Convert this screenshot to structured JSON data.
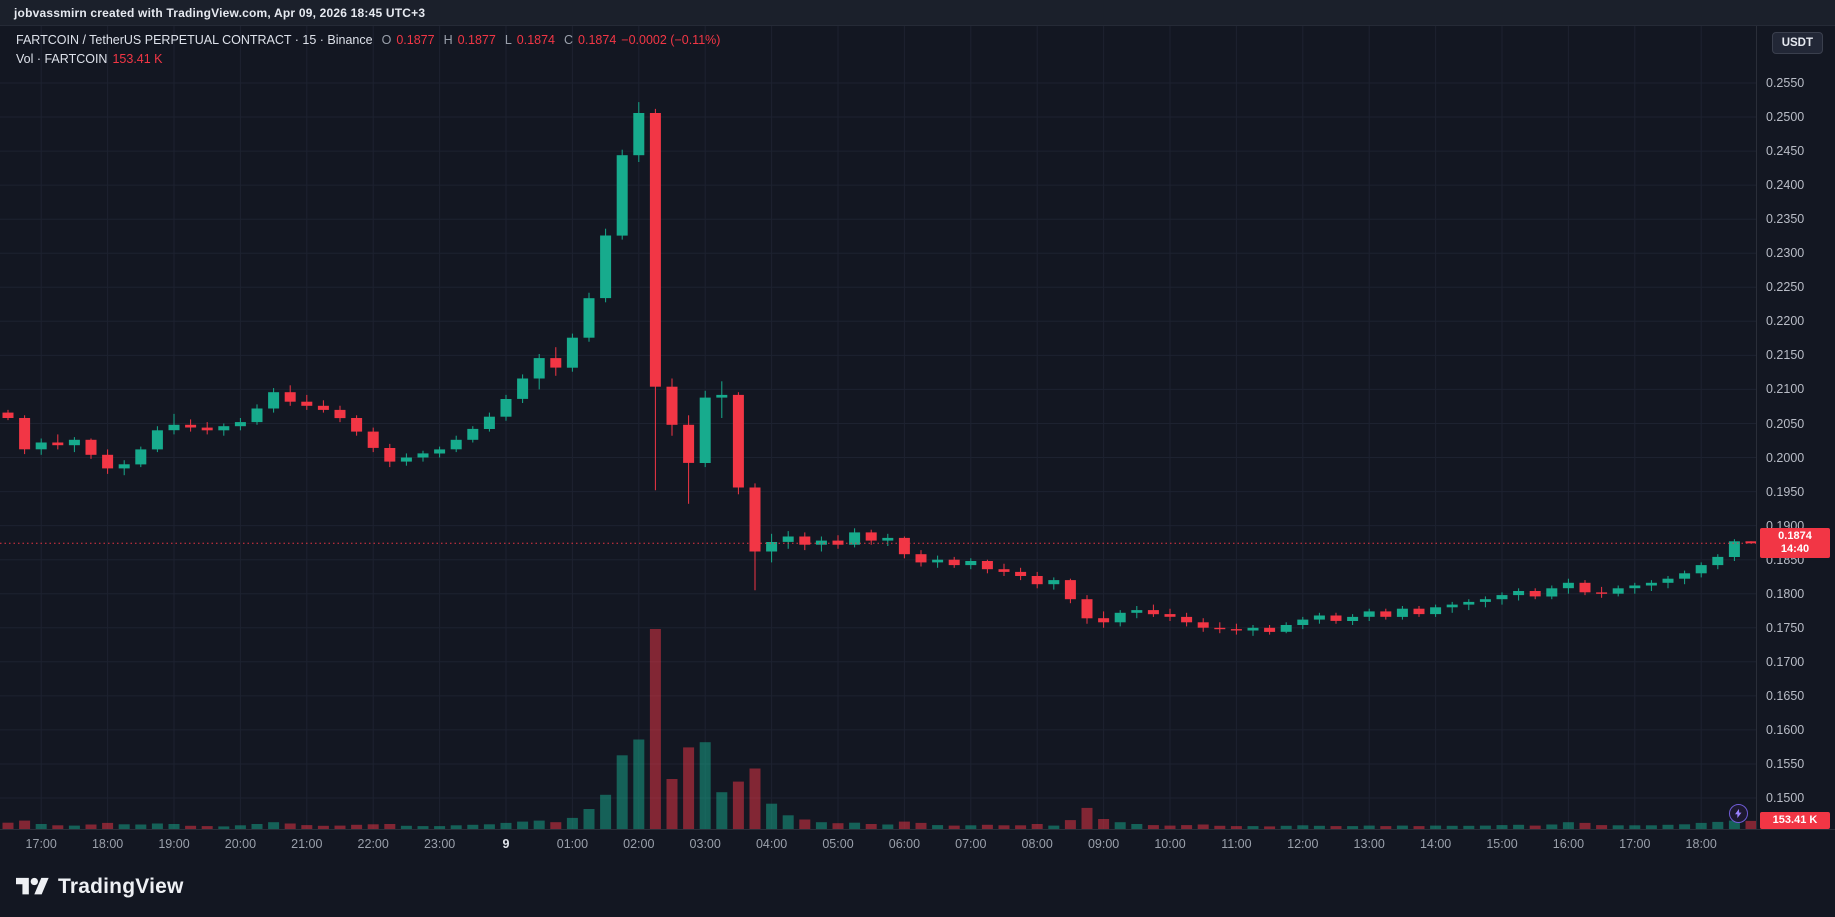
{
  "banner": {
    "attribution": "jobvassmirn created with TradingView.com, Apr 09, 2026 18:45 UTC+3"
  },
  "header": {
    "symbol_line": {
      "title": "FARTCOIN / TetherUS PERPETUAL CONTRACT · 15 · Binance",
      "o_label": "O",
      "o": "0.1877",
      "h_label": "H",
      "h": "0.1877",
      "l_label": "L",
      "l": "0.1874",
      "c_label": "C",
      "c": "0.1874",
      "change": "−0.0002 (−0.11%)"
    },
    "volume_line": {
      "label": "Vol · FARTCOIN",
      "value": "153.41 K"
    }
  },
  "price_scale": {
    "currency_button": "USDT",
    "labels": [
      "0.2550",
      "0.2500",
      "0.2450",
      "0.2400",
      "0.2350",
      "0.2300",
      "0.2250",
      "0.2200",
      "0.2150",
      "0.2100",
      "0.2050",
      "0.2000",
      "0.1950",
      "0.1900",
      "0.1850",
      "0.1800",
      "0.1750",
      "0.1700",
      "0.1650",
      "0.1600",
      "0.1550",
      "0.1500"
    ],
    "last_price_badge": {
      "price": "0.1874",
      "countdown": "14:40"
    }
  },
  "volume_badge": "153.41 K",
  "time_axis": {
    "labels": [
      {
        "text": "17:00",
        "index": 2
      },
      {
        "text": "18:00",
        "index": 6
      },
      {
        "text": "19:00",
        "index": 10
      },
      {
        "text": "20:00",
        "index": 14
      },
      {
        "text": "21:00",
        "index": 18
      },
      {
        "text": "22:00",
        "index": 22
      },
      {
        "text": "23:00",
        "index": 26
      },
      {
        "text": "9",
        "index": 30,
        "emphasis": true
      },
      {
        "text": "01:00",
        "index": 34
      },
      {
        "text": "02:00",
        "index": 38
      },
      {
        "text": "03:00",
        "index": 42
      },
      {
        "text": "04:00",
        "index": 46
      },
      {
        "text": "05:00",
        "index": 50
      },
      {
        "text": "06:00",
        "index": 54
      },
      {
        "text": "07:00",
        "index": 58
      },
      {
        "text": "08:00",
        "index": 62
      },
      {
        "text": "09:00",
        "index": 66
      },
      {
        "text": "10:00",
        "index": 70
      },
      {
        "text": "11:00",
        "index": 74
      },
      {
        "text": "12:00",
        "index": 78
      },
      {
        "text": "13:00",
        "index": 82
      },
      {
        "text": "14:00",
        "index": 86
      },
      {
        "text": "15:00",
        "index": 90
      },
      {
        "text": "16:00",
        "index": 94
      },
      {
        "text": "17:00",
        "index": 98
      },
      {
        "text": "18:00",
        "index": 102
      }
    ]
  },
  "footer": {
    "brand": "TradingView"
  },
  "colors": {
    "up": "#17ab8d",
    "down": "#f23645",
    "vol_up": "rgba(23,171,141,0.5)",
    "vol_down": "rgba(242,54,69,0.5)",
    "grid": "#1d2230",
    "last_price_line": "#f23645"
  },
  "chart_data": {
    "type": "candlestick+volume",
    "title": "FARTCOIN / TetherUS PERPETUAL CONTRACT, 15m, Binance",
    "interval_minutes": 15,
    "price_axis": {
      "min": 0.15,
      "max": 0.255,
      "tick": 0.005
    },
    "last_price": 0.1874,
    "last_candle_ohlc": {
      "o": 0.1877,
      "h": 0.1877,
      "l": 0.1874,
      "c": 0.1874,
      "change": -0.0002,
      "change_pct": -0.11
    },
    "volume_unit": "K",
    "candles_note": "each candle = [time, open, high, low, close, volume_K]; series runs Apr 8 16:30 through Apr 9 18:45, day rolls over at index 30 (label 9)",
    "candles": [
      [
        "16:30",
        0.2066,
        0.207,
        0.2055,
        0.2058,
        120
      ],
      [
        "16:45",
        0.2058,
        0.2062,
        0.2005,
        0.2012,
        160
      ],
      [
        "17:00",
        0.2012,
        0.2028,
        0.2004,
        0.2022,
        95
      ],
      [
        "17:15",
        0.2022,
        0.2034,
        0.2012,
        0.2018,
        70
      ],
      [
        "17:30",
        0.2018,
        0.203,
        0.2008,
        0.2026,
        65
      ],
      [
        "17:45",
        0.2026,
        0.2028,
        0.1998,
        0.2004,
        85
      ],
      [
        "18:00",
        0.2004,
        0.2012,
        0.1976,
        0.1984,
        115
      ],
      [
        "18:15",
        0.1984,
        0.1996,
        0.1974,
        0.199,
        90
      ],
      [
        "18:30",
        0.199,
        0.2016,
        0.1986,
        0.2012,
        85
      ],
      [
        "18:45",
        0.2012,
        0.2046,
        0.2008,
        0.204,
        105
      ],
      [
        "19:00",
        0.204,
        0.2064,
        0.2034,
        0.2048,
        95
      ],
      [
        "19:15",
        0.2048,
        0.2056,
        0.2038,
        0.2044,
        60
      ],
      [
        "19:30",
        0.2044,
        0.2052,
        0.2034,
        0.204,
        55
      ],
      [
        "19:45",
        0.204,
        0.205,
        0.2032,
        0.2046,
        50
      ],
      [
        "20:00",
        0.2046,
        0.2058,
        0.204,
        0.2052,
        70
      ],
      [
        "20:15",
        0.2052,
        0.2078,
        0.2048,
        0.2072,
        95
      ],
      [
        "20:30",
        0.2072,
        0.2102,
        0.2066,
        0.2096,
        130
      ],
      [
        "20:45",
        0.2096,
        0.2106,
        0.2076,
        0.2082,
        105
      ],
      [
        "21:00",
        0.2082,
        0.2092,
        0.207,
        0.2076,
        75
      ],
      [
        "21:15",
        0.2076,
        0.2084,
        0.2066,
        0.207,
        60
      ],
      [
        "21:30",
        0.207,
        0.2076,
        0.2052,
        0.2058,
        65
      ],
      [
        "21:45",
        0.2058,
        0.2062,
        0.2032,
        0.2038,
        80
      ],
      [
        "22:00",
        0.2038,
        0.2044,
        0.2008,
        0.2014,
        90
      ],
      [
        "22:15",
        0.2014,
        0.202,
        0.1986,
        0.1994,
        95
      ],
      [
        "22:30",
        0.1994,
        0.2006,
        0.1988,
        0.2,
        60
      ],
      [
        "22:45",
        0.2,
        0.201,
        0.1994,
        0.2006,
        55
      ],
      [
        "23:00",
        0.2006,
        0.2016,
        0.2,
        0.2012,
        55
      ],
      [
        "23:15",
        0.2012,
        0.2032,
        0.2008,
        0.2026,
        70
      ],
      [
        "23:30",
        0.2026,
        0.2046,
        0.2022,
        0.2042,
        80
      ],
      [
        "23:45",
        0.2042,
        0.2066,
        0.2038,
        0.206,
        90
      ],
      [
        "00:00",
        0.206,
        0.2092,
        0.2054,
        0.2086,
        115
      ],
      [
        "00:15",
        0.2086,
        0.2122,
        0.208,
        0.2116,
        140
      ],
      [
        "00:30",
        0.2116,
        0.2152,
        0.21,
        0.2146,
        160
      ],
      [
        "00:45",
        0.2146,
        0.2162,
        0.212,
        0.2132,
        130
      ],
      [
        "01:00",
        0.2132,
        0.2182,
        0.2126,
        0.2176,
        210
      ],
      [
        "01:15",
        0.2176,
        0.2242,
        0.217,
        0.2234,
        380
      ],
      [
        "01:30",
        0.2234,
        0.2336,
        0.2228,
        0.2326,
        650
      ],
      [
        "01:45",
        0.2326,
        0.2452,
        0.232,
        0.2444,
        1400
      ],
      [
        "02:00",
        0.2444,
        0.2522,
        0.2434,
        0.2506,
        1700
      ],
      [
        "02:15",
        0.2506,
        0.2512,
        0.1952,
        0.2104,
        3800
      ],
      [
        "02:30",
        0.2104,
        0.2116,
        0.2032,
        0.2048,
        950
      ],
      [
        "02:45",
        0.2048,
        0.2062,
        0.1932,
        0.1992,
        1550
      ],
      [
        "03:00",
        0.1992,
        0.2098,
        0.1986,
        0.2088,
        1650
      ],
      [
        "03:15",
        0.2088,
        0.2112,
        0.2058,
        0.2092,
        700
      ],
      [
        "03:30",
        0.2092,
        0.2096,
        0.1946,
        0.1956,
        900
      ],
      [
        "03:45",
        0.1956,
        0.1962,
        0.1805,
        0.1862,
        1150
      ],
      [
        "04:00",
        0.1862,
        0.1888,
        0.1846,
        0.1876,
        480
      ],
      [
        "04:15",
        0.1876,
        0.1892,
        0.1866,
        0.1884,
        260
      ],
      [
        "04:30",
        0.1884,
        0.189,
        0.1864,
        0.1872,
        180
      ],
      [
        "04:45",
        0.1872,
        0.1884,
        0.1862,
        0.1878,
        130
      ],
      [
        "05:00",
        0.1878,
        0.1886,
        0.1866,
        0.1872,
        110
      ],
      [
        "05:15",
        0.1872,
        0.1896,
        0.1868,
        0.189,
        120
      ],
      [
        "05:30",
        0.189,
        0.1894,
        0.1872,
        0.1878,
        95
      ],
      [
        "05:45",
        0.1878,
        0.1888,
        0.187,
        0.1882,
        85
      ],
      [
        "06:00",
        0.1882,
        0.1884,
        0.1852,
        0.1858,
        140
      ],
      [
        "06:15",
        0.1858,
        0.1864,
        0.184,
        0.1846,
        115
      ],
      [
        "06:30",
        0.1846,
        0.1856,
        0.1838,
        0.185,
        75
      ],
      [
        "06:45",
        0.185,
        0.1854,
        0.1838,
        0.1842,
        65
      ],
      [
        "07:00",
        0.1842,
        0.1852,
        0.1836,
        0.1848,
        70
      ],
      [
        "07:15",
        0.1848,
        0.185,
        0.183,
        0.1836,
        80
      ],
      [
        "07:30",
        0.1836,
        0.1844,
        0.1826,
        0.1832,
        70
      ],
      [
        "07:45",
        0.1832,
        0.1838,
        0.182,
        0.1826,
        70
      ],
      [
        "08:00",
        0.1826,
        0.1832,
        0.1808,
        0.1814,
        95
      ],
      [
        "08:15",
        0.1814,
        0.1824,
        0.1806,
        0.182,
        65
      ],
      [
        "08:30",
        0.182,
        0.1822,
        0.1786,
        0.1792,
        170
      ],
      [
        "08:45",
        0.1792,
        0.1798,
        0.1756,
        0.1764,
        400
      ],
      [
        "09:00",
        0.1764,
        0.1774,
        0.175,
        0.1758,
        190
      ],
      [
        "09:15",
        0.1758,
        0.1776,
        0.1752,
        0.1772,
        130
      ],
      [
        "09:30",
        0.1772,
        0.1782,
        0.1764,
        0.1776,
        95
      ],
      [
        "09:45",
        0.1776,
        0.1784,
        0.1766,
        0.177,
        75
      ],
      [
        "10:00",
        0.177,
        0.1778,
        0.176,
        0.1766,
        65
      ],
      [
        "10:15",
        0.1766,
        0.1772,
        0.1752,
        0.1758,
        75
      ],
      [
        "10:30",
        0.1758,
        0.1764,
        0.1744,
        0.175,
        85
      ],
      [
        "10:45",
        0.175,
        0.1758,
        0.1742,
        0.1748,
        60
      ],
      [
        "11:00",
        0.1748,
        0.1756,
        0.174,
        0.1746,
        55
      ],
      [
        "11:15",
        0.1746,
        0.1754,
        0.1738,
        0.175,
        55
      ],
      [
        "11:30",
        0.175,
        0.1754,
        0.174,
        0.1744,
        50
      ],
      [
        "11:45",
        0.1744,
        0.1758,
        0.1742,
        0.1754,
        60
      ],
      [
        "12:00",
        0.1754,
        0.1766,
        0.1748,
        0.1762,
        70
      ],
      [
        "12:15",
        0.1762,
        0.1772,
        0.1756,
        0.1768,
        60
      ],
      [
        "12:30",
        0.1768,
        0.1772,
        0.1756,
        0.176,
        55
      ],
      [
        "12:45",
        0.176,
        0.177,
        0.1754,
        0.1766,
        55
      ],
      [
        "13:00",
        0.1766,
        0.1778,
        0.176,
        0.1774,
        65
      ],
      [
        "13:15",
        0.1774,
        0.1778,
        0.1762,
        0.1766,
        55
      ],
      [
        "13:30",
        0.1766,
        0.1782,
        0.1762,
        0.1778,
        65
      ],
      [
        "13:45",
        0.1778,
        0.1782,
        0.1766,
        0.177,
        55
      ],
      [
        "14:00",
        0.177,
        0.1784,
        0.1766,
        0.178,
        65
      ],
      [
        "14:15",
        0.178,
        0.1788,
        0.1772,
        0.1784,
        60
      ],
      [
        "14:30",
        0.1784,
        0.1792,
        0.1776,
        0.1788,
        60
      ],
      [
        "14:45",
        0.1788,
        0.1796,
        0.178,
        0.1792,
        65
      ],
      [
        "15:00",
        0.1792,
        0.1802,
        0.1784,
        0.1798,
        75
      ],
      [
        "15:15",
        0.1798,
        0.1808,
        0.179,
        0.1804,
        80
      ],
      [
        "15:30",
        0.1804,
        0.1808,
        0.1792,
        0.1796,
        65
      ],
      [
        "15:45",
        0.1796,
        0.1812,
        0.1792,
        0.1808,
        85
      ],
      [
        "16:00",
        0.1808,
        0.1822,
        0.18,
        0.1816,
        130
      ],
      [
        "16:15",
        0.1816,
        0.182,
        0.1798,
        0.1802,
        115
      ],
      [
        "16:30",
        0.1802,
        0.181,
        0.1794,
        0.18,
        75
      ],
      [
        "16:45",
        0.18,
        0.1812,
        0.1796,
        0.1808,
        70
      ],
      [
        "17:00",
        0.1808,
        0.1816,
        0.18,
        0.1812,
        70
      ],
      [
        "17:15",
        0.1812,
        0.182,
        0.1804,
        0.1816,
        70
      ],
      [
        "17:30",
        0.1816,
        0.1826,
        0.1808,
        0.1822,
        80
      ],
      [
        "17:45",
        0.1822,
        0.1834,
        0.1814,
        0.183,
        90
      ],
      [
        "18:00",
        0.183,
        0.1846,
        0.1824,
        0.1842,
        115
      ],
      [
        "18:15",
        0.1842,
        0.1858,
        0.1836,
        0.1854,
        135
      ],
      [
        "18:30",
        0.1854,
        0.188,
        0.1848,
        0.1877,
        160
      ],
      [
        "18:45",
        0.1877,
        0.1877,
        0.1874,
        0.1874,
        153.41
      ]
    ]
  }
}
